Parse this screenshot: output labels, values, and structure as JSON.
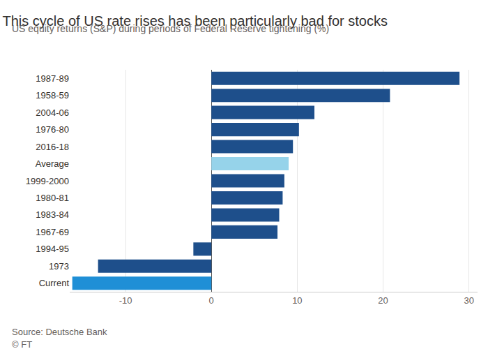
{
  "chart_data": {
    "type": "bar",
    "orientation": "horizontal",
    "title": "This cycle of US rate rises has been particularly bad for stocks",
    "subtitle": "US equity returns (S&P) during periods of Federal Reserve tightening (%)",
    "annotations": [
      "Source: Deutsche Bank",
      "© FT"
    ],
    "categories": [
      "1987-89",
      "1958-59",
      "2004-06",
      "1976-80",
      "2016-18",
      "Average",
      "1999-2000",
      "1980-81",
      "1983-84",
      "1967-69",
      "1994-95",
      "1973",
      "Current"
    ],
    "values": [
      28.9,
      20.8,
      12.0,
      10.2,
      9.5,
      9.0,
      8.5,
      8.3,
      7.9,
      7.7,
      -2.1,
      -13.2,
      -16.2
    ],
    "colors": [
      "#1e4f8b",
      "#1e4f8b",
      "#1e4f8b",
      "#1e4f8b",
      "#1e4f8b",
      "#96d3ea",
      "#1e4f8b",
      "#1e4f8b",
      "#1e4f8b",
      "#1e4f8b",
      "#1e4f8b",
      "#1e4f8b",
      "#1f8fd6"
    ],
    "xlim": [
      -16.5,
      31
    ],
    "xticks": [
      -10,
      0,
      10,
      20,
      30
    ],
    "grid": true
  }
}
